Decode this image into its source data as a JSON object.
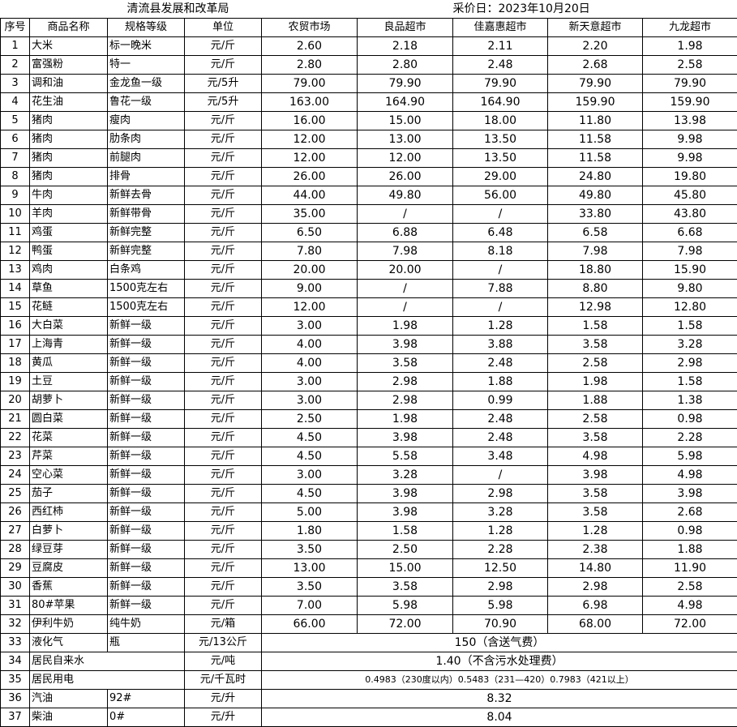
{
  "title": "清流县发展和改革局",
  "date_label": "采价日：2023年10月20日",
  "headers": [
    "序号",
    "商品名称",
    "规格等级",
    "单位",
    "农贸市场",
    "良品超市",
    "佳嘉惠超市",
    "新天意超市",
    "九龙超市"
  ],
  "rows": [
    {
      "no": "1",
      "name": "大米",
      "spec": "标一晚米",
      "unit": "元/斤",
      "prices": [
        "2.60",
        "2.18",
        "2.11",
        "2.20",
        "1.98"
      ]
    },
    {
      "no": "2",
      "name": "富强粉",
      "spec": "特一",
      "unit": "元/斤",
      "prices": [
        "2.80",
        "2.80",
        "2.48",
        "2.68",
        "2.58"
      ]
    },
    {
      "no": "3",
      "name": "调和油",
      "spec": "金龙鱼一级",
      "unit": "元/5升",
      "prices": [
        "79.00",
        "79.90",
        "79.90",
        "79.90",
        "79.90"
      ]
    },
    {
      "no": "4",
      "name": "花生油",
      "spec": "鲁花一级",
      "unit": "元/5升",
      "prices": [
        "163.00",
        "164.90",
        "164.90",
        "159.90",
        "159.90"
      ]
    },
    {
      "no": "5",
      "name": "猪肉",
      "spec": "瘦肉",
      "unit": "元/斤",
      "prices": [
        "16.00",
        "15.00",
        "18.00",
        "11.80",
        "13.98"
      ]
    },
    {
      "no": "6",
      "name": "猪肉",
      "spec": "肋条肉",
      "unit": "元/斤",
      "prices": [
        "12.00",
        "13.00",
        "13.50",
        "11.58",
        "9.98"
      ]
    },
    {
      "no": "7",
      "name": "猪肉",
      "spec": "前腿肉",
      "unit": "元/斤",
      "prices": [
        "12.00",
        "12.00",
        "13.50",
        "11.58",
        "9.98"
      ]
    },
    {
      "no": "8",
      "name": "猪肉",
      "spec": "排骨",
      "unit": "元/斤",
      "prices": [
        "26.00",
        "26.00",
        "29.00",
        "24.80",
        "19.80"
      ]
    },
    {
      "no": "9",
      "name": "牛肉",
      "spec": "新鲜去骨",
      "unit": "元/斤",
      "prices": [
        "44.00",
        "49.80",
        "56.00",
        "49.80",
        "45.80"
      ]
    },
    {
      "no": "10",
      "name": "羊肉",
      "spec": "新鲜带骨",
      "unit": "元/斤",
      "prices": [
        "35.00",
        "/",
        "/",
        "33.80",
        "43.80"
      ]
    },
    {
      "no": "11",
      "name": "鸡蛋",
      "spec": "新鲜完整",
      "unit": "元/斤",
      "prices": [
        "6.50",
        "6.88",
        "6.48",
        "6.58",
        "6.68"
      ]
    },
    {
      "no": "12",
      "name": "鸭蛋",
      "spec": "新鲜完整",
      "unit": "元/斤",
      "prices": [
        "7.80",
        "7.98",
        "8.18",
        "7.98",
        "7.98"
      ]
    },
    {
      "no": "13",
      "name": "鸡肉",
      "spec": "白条鸡",
      "unit": "元/斤",
      "prices": [
        "20.00",
        "20.00",
        "/",
        "18.80",
        "15.90"
      ]
    },
    {
      "no": "14",
      "name": "草鱼",
      "spec": "1500克左右",
      "unit": "元/斤",
      "prices": [
        "9.00",
        "/",
        "7.88",
        "8.80",
        "9.80"
      ]
    },
    {
      "no": "15",
      "name": "花鲢",
      "spec": "1500克左右",
      "unit": "元/斤",
      "prices": [
        "12.00",
        "/",
        "/",
        "12.98",
        "12.80"
      ]
    },
    {
      "no": "16",
      "name": "大白菜",
      "spec": "新鲜一级",
      "unit": "元/斤",
      "prices": [
        "3.00",
        "1.98",
        "1.28",
        "1.58",
        "1.58"
      ]
    },
    {
      "no": "17",
      "name": "上海青",
      "spec": "新鲜一级",
      "unit": "元/斤",
      "prices": [
        "4.00",
        "3.98",
        "3.88",
        "3.58",
        "3.28"
      ]
    },
    {
      "no": "18",
      "name": "黄瓜",
      "spec": "新鲜一级",
      "unit": "元/斤",
      "prices": [
        "4.00",
        "3.58",
        "2.48",
        "2.58",
        "2.98"
      ]
    },
    {
      "no": "19",
      "name": "土豆",
      "spec": "新鲜一级",
      "unit": "元/斤",
      "prices": [
        "3.00",
        "2.98",
        "1.88",
        "1.98",
        "1.58"
      ]
    },
    {
      "no": "20",
      "name": "胡萝卜",
      "spec": "新鲜一级",
      "unit": "元/斤",
      "prices": [
        "3.00",
        "2.98",
        "0.99",
        "1.88",
        "1.38"
      ]
    },
    {
      "no": "21",
      "name": "圆白菜",
      "spec": "新鲜一级",
      "unit": "元/斤",
      "prices": [
        "2.50",
        "1.98",
        "2.48",
        "2.58",
        "0.98"
      ]
    },
    {
      "no": "22",
      "name": "花菜",
      "spec": "新鲜一级",
      "unit": "元/斤",
      "prices": [
        "4.50",
        "3.98",
        "2.48",
        "3.58",
        "2.28"
      ]
    },
    {
      "no": "23",
      "name": "芹菜",
      "spec": "新鲜一级",
      "unit": "元/斤",
      "prices": [
        "4.50",
        "5.58",
        "3.48",
        "4.98",
        "5.98"
      ]
    },
    {
      "no": "24",
      "name": "空心菜",
      "spec": "新鲜一级",
      "unit": "元/斤",
      "prices": [
        "3.00",
        "3.28",
        "/",
        "3.98",
        "4.98"
      ]
    },
    {
      "no": "25",
      "name": "茄子",
      "spec": "新鲜一级",
      "unit": "元/斤",
      "prices": [
        "4.50",
        "3.98",
        "2.98",
        "3.58",
        "3.98"
      ]
    },
    {
      "no": "26",
      "name": "西红柿",
      "spec": "新鲜一级",
      "unit": "元/斤",
      "prices": [
        "5.00",
        "3.98",
        "3.28",
        "3.58",
        "2.68"
      ]
    },
    {
      "no": "27",
      "name": "白萝卜",
      "spec": "新鲜一级",
      "unit": "元/斤",
      "prices": [
        "1.80",
        "1.58",
        "1.28",
        "1.28",
        "0.98"
      ]
    },
    {
      "no": "28",
      "name": "绿豆芽",
      "spec": "新鲜一级",
      "unit": "元/斤",
      "prices": [
        "3.50",
        "2.50",
        "2.28",
        "2.38",
        "1.88"
      ]
    },
    {
      "no": "29",
      "name": "豆腐皮",
      "spec": "新鲜一级",
      "unit": "元/斤",
      "prices": [
        "13.00",
        "15.00",
        "12.50",
        "14.80",
        "11.90"
      ]
    },
    {
      "no": "30",
      "name": "香蕉",
      "spec": "新鲜一级",
      "unit": "元/斤",
      "prices": [
        "3.50",
        "3.58",
        "2.98",
        "2.98",
        "2.58"
      ]
    },
    {
      "no": "31",
      "name": "80#苹果",
      "spec": "新鲜一级",
      "unit": "元/斤",
      "prices": [
        "7.00",
        "5.98",
        "5.98",
        "6.98",
        "4.98"
      ]
    },
    {
      "no": "32",
      "name": "伊利牛奶",
      "spec": "纯牛奶",
      "unit": "元/箱",
      "prices": [
        "66.00",
        "72.00",
        "70.90",
        "68.00",
        "72.00"
      ]
    }
  ],
  "merged_rows": [
    {
      "no": "33",
      "name": "液化气",
      "spec": "瓶",
      "unit": "元/13公斤",
      "value": "150（含送气费）"
    },
    {
      "no": "34",
      "name": "居民自来水",
      "spec": "",
      "unit": "元/吨",
      "value": "1.40（不含污水处理费）"
    },
    {
      "no": "35",
      "name": "居民用电",
      "spec": "",
      "unit": "元/千瓦时",
      "value": "0.4983（230度以内）0.5483（231—420）0.7983（421以上）"
    },
    {
      "no": "36",
      "name": "汽油",
      "spec": "92#",
      "unit": "元/升",
      "value": "8.32"
    },
    {
      "no": "37",
      "name": "柴油",
      "spec": "0#",
      "unit": "元/升",
      "value": "8.04"
    }
  ]
}
